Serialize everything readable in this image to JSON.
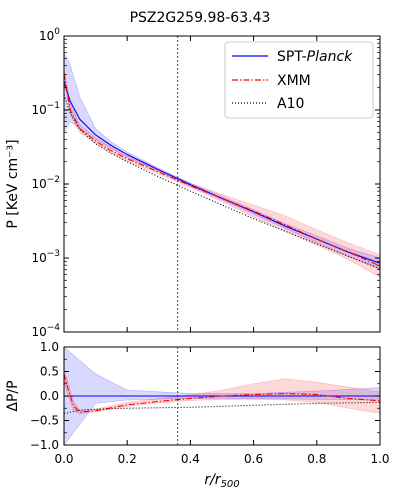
{
  "chart_data": [
    {
      "type": "line",
      "title": "PSZ2G259.98-63.43",
      "ylabel": "P [KeV cm⁻³]",
      "xlim": [
        0,
        1
      ],
      "ylim": [
        0.0001,
        1
      ],
      "yscale": "log",
      "xticks": [
        0,
        0.2,
        0.4,
        0.6,
        0.8,
        1.0
      ],
      "yticks": [
        {
          "value": 0.0001,
          "base": "10",
          "exp": "−4"
        },
        {
          "value": 0.001,
          "base": "10",
          "exp": "−3"
        },
        {
          "value": 0.01,
          "base": "10",
          "exp": "−2"
        },
        {
          "value": 0.1,
          "base": "10",
          "exp": "−1"
        },
        {
          "value": 1,
          "base": "10",
          "exp": "0"
        }
      ],
      "vline_x": 0.36,
      "legend_position": "top-right",
      "series": [
        {
          "name": "SPT-",
          "name_italic": "Planck",
          "color": "#0000ff",
          "style": "solid",
          "x": [
            0.0,
            0.02,
            0.05,
            0.1,
            0.15,
            0.2,
            0.3,
            0.4,
            0.5,
            0.6,
            0.7,
            0.8,
            0.9,
            1.0
          ],
          "y": [
            0.24,
            0.13,
            0.075,
            0.046,
            0.033,
            0.025,
            0.0155,
            0.0098,
            0.0064,
            0.0042,
            0.0027,
            0.0018,
            0.0012,
            0.00085
          ],
          "band_low": [
            0.05,
            0.07,
            0.056,
            0.04,
            0.03,
            0.023,
            0.0148,
            0.0093,
            0.0061,
            0.0039,
            0.0025,
            0.0016,
            0.00105,
            0.0007
          ],
          "band_high": [
            0.6,
            0.4,
            0.15,
            0.056,
            0.037,
            0.027,
            0.0163,
            0.0103,
            0.0068,
            0.0045,
            0.0029,
            0.002,
            0.00135,
            0.001
          ]
        },
        {
          "name": "XMM",
          "color": "#ff0000",
          "style": "dashdot",
          "x": [
            0.0,
            0.02,
            0.05,
            0.1,
            0.15,
            0.2,
            0.3,
            0.4,
            0.5,
            0.6,
            0.7,
            0.8,
            0.9,
            1.0
          ],
          "y": [
            0.31,
            0.1,
            0.056,
            0.038,
            0.028,
            0.022,
            0.0145,
            0.0095,
            0.0064,
            0.0043,
            0.0028,
            0.0018,
            0.0012,
            0.00078
          ],
          "band_low": [
            0.26,
            0.086,
            0.05,
            0.035,
            0.026,
            0.0205,
            0.0137,
            0.009,
            0.0058,
            0.0036,
            0.0023,
            0.0015,
            0.00095,
            0.00055
          ],
          "band_high": [
            0.36,
            0.12,
            0.064,
            0.042,
            0.031,
            0.0235,
            0.0155,
            0.0102,
            0.0072,
            0.0052,
            0.0037,
            0.0024,
            0.0016,
            0.0011
          ]
        },
        {
          "name": "A10",
          "color": "#000000",
          "style": "dotted",
          "x": [
            0.0,
            0.02,
            0.05,
            0.1,
            0.15,
            0.2,
            0.3,
            0.4,
            0.5,
            0.6,
            0.7,
            0.8,
            0.9,
            1.0
          ],
          "y": [
            0.16,
            0.09,
            0.055,
            0.035,
            0.026,
            0.02,
            0.0125,
            0.008,
            0.0052,
            0.0034,
            0.0023,
            0.00155,
            0.00105,
            0.00072
          ]
        }
      ]
    },
    {
      "type": "line",
      "xlabel": "r/r500",
      "xlabel_main": "r/r",
      "xlabel_sub": "500",
      "ylabel": "ΔP/P",
      "xlim": [
        0,
        1
      ],
      "ylim": [
        -1,
        1
      ],
      "xticks": [
        0,
        0.2,
        0.4,
        0.6,
        0.8,
        1.0
      ],
      "xtick_labels": [
        "0.0",
        "0.2",
        "0.4",
        "0.6",
        "0.8",
        "1.0"
      ],
      "yticks": [
        -1.0,
        -0.5,
        0.0,
        0.5,
        1.0
      ],
      "ytick_labels": [
        "−1.0",
        "−0.5",
        "0.0",
        "0.5",
        "1.0"
      ],
      "vline_x": 0.36,
      "series": [
        {
          "name": "SPT-Planck",
          "color": "#0000ff",
          "style": "solid",
          "x": [
            0.0,
            0.1,
            0.2,
            0.4,
            0.6,
            0.8,
            1.0
          ],
          "y": [
            0.0,
            0.0,
            0.0,
            0.0,
            0.0,
            0.0,
            0.0
          ],
          "band_low": [
            -1.0,
            -0.15,
            -0.08,
            -0.05,
            -0.05,
            -0.07,
            -0.08
          ],
          "band_high": [
            1.0,
            0.45,
            0.12,
            0.05,
            0.05,
            0.1,
            0.17
          ]
        },
        {
          "name": "XMM",
          "color": "#ff0000",
          "style": "dashdot",
          "x": [
            0.0,
            0.01,
            0.03,
            0.05,
            0.1,
            0.15,
            0.2,
            0.3,
            0.4,
            0.5,
            0.6,
            0.7,
            0.8,
            0.9,
            1.0
          ],
          "y": [
            0.45,
            0.2,
            -0.2,
            -0.33,
            -0.3,
            -0.24,
            -0.18,
            -0.11,
            -0.05,
            0.0,
            0.03,
            0.05,
            0.03,
            -0.05,
            -0.1
          ],
          "band_low": [
            0.3,
            0.05,
            -0.3,
            -0.36,
            -0.32,
            -0.27,
            -0.21,
            -0.14,
            -0.09,
            -0.07,
            -0.07,
            -0.08,
            -0.13,
            -0.25,
            -0.35
          ],
          "band_high": [
            0.55,
            0.35,
            -0.1,
            -0.29,
            -0.27,
            -0.2,
            -0.13,
            -0.05,
            0.02,
            0.12,
            0.25,
            0.35,
            0.28,
            0.18,
            0.08
          ]
        },
        {
          "name": "A10",
          "color": "#000000",
          "style": "dotted",
          "x": [
            0.0,
            0.05,
            0.1,
            0.2,
            0.3,
            0.4,
            0.5,
            0.6,
            0.7,
            0.8,
            0.9,
            1.0
          ],
          "y": [
            -0.36,
            -0.29,
            -0.27,
            -0.25,
            -0.24,
            -0.23,
            -0.21,
            -0.19,
            -0.17,
            -0.15,
            -0.14,
            -0.13
          ]
        }
      ]
    }
  ]
}
